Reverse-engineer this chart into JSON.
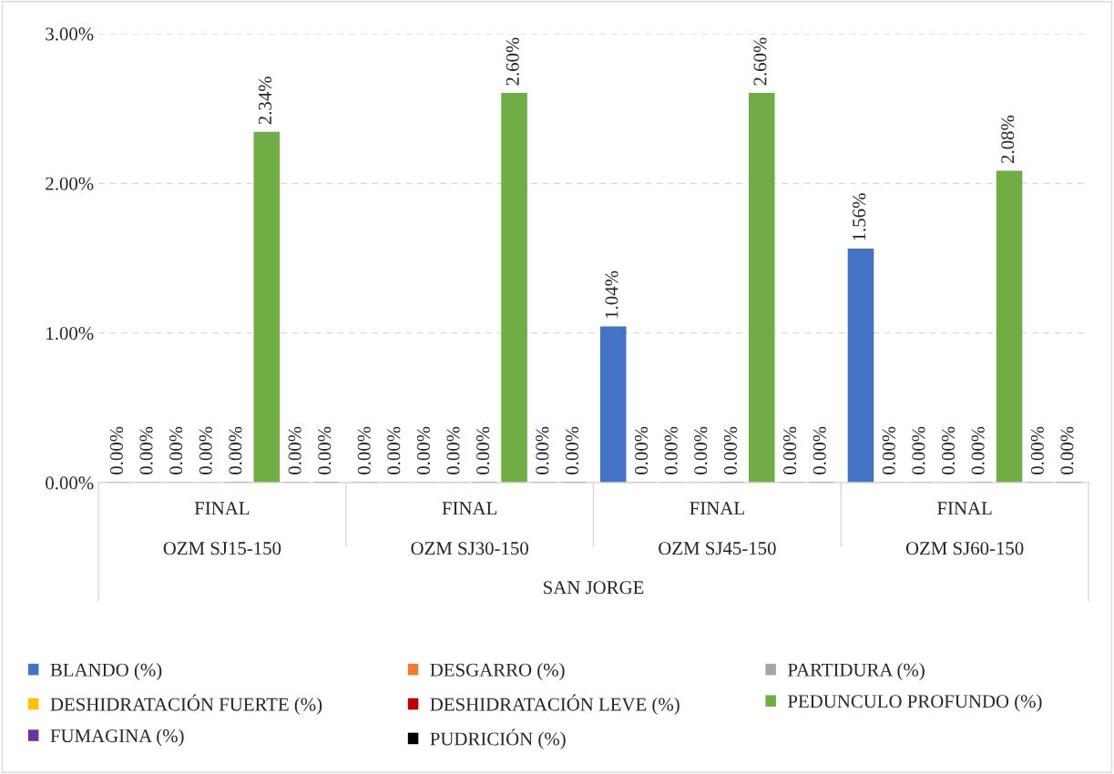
{
  "chart_data": {
    "type": "bar",
    "categories": [
      "FINAL\nOZM SJ15-150",
      "FINAL\nOZM SJ30-150",
      "FINAL\nOZM SJ45-150",
      "FINAL\nOZM SJ60-150"
    ],
    "xlabel": "SAN JORGE",
    "series": [
      {
        "name": "BLANDO (%)",
        "color": "#4472c4",
        "values": [
          0,
          0,
          1.04,
          1.56
        ],
        "value_labels": [
          "0.00%",
          "0.00%",
          "1.04%",
          "1.56%"
        ]
      },
      {
        "name": "DESGARRO (%)",
        "color": "#ed7d31",
        "values": [
          0,
          0,
          0,
          0
        ],
        "value_labels": [
          "0.00%",
          "0.00%",
          "0.00%",
          "0.00%"
        ]
      },
      {
        "name": "PARTIDURA (%)",
        "color": "#a5a5a5",
        "values": [
          0,
          0,
          0,
          0
        ],
        "value_labels": [
          "0.00%",
          "0.00%",
          "0.00%",
          "0.00%"
        ]
      },
      {
        "name": "DESHIDRATACIÓN FUERTE (%)",
        "color": "#ffc000",
        "values": [
          0,
          0,
          0,
          0
        ],
        "value_labels": [
          "0.00%",
          "0.00%",
          "0.00%",
          "0.00%"
        ]
      },
      {
        "name": "DESHIDRATACIÓN LEVE (%)",
        "color": "#c00000",
        "values": [
          0,
          0,
          0,
          0
        ],
        "value_labels": [
          "0.00%",
          "0.00%",
          "0.00%",
          "0.00%"
        ]
      },
      {
        "name": "PEDUNCULO PROFUNDO (%)",
        "color": "#70ad47",
        "values": [
          2.34,
          2.6,
          2.6,
          2.08
        ],
        "value_labels": [
          "2.34%",
          "2.60%",
          "2.60%",
          "2.08%"
        ]
      },
      {
        "name": "FUMAGINA (%)",
        "color": "#7030a0",
        "values": [
          0,
          0,
          0,
          0
        ],
        "value_labels": [
          "0.00%",
          "0.00%",
          "0.00%",
          "0.00%"
        ]
      },
      {
        "name": "PUDRICIÓN (%)",
        "color": "#000000",
        "values": [
          0,
          0,
          0,
          0
        ],
        "value_labels": [
          "0.00%",
          "0.00%",
          "0.00%",
          "0.00%"
        ]
      }
    ],
    "ylim": [
      0,
      3
    ],
    "yticks": [
      {
        "value": 0,
        "label": "0.00%"
      },
      {
        "value": 1,
        "label": "1.00%"
      },
      {
        "value": 2,
        "label": "2.00%"
      },
      {
        "value": 3,
        "label": "3.00%"
      }
    ],
    "grid": "y",
    "legend": "bottom"
  }
}
